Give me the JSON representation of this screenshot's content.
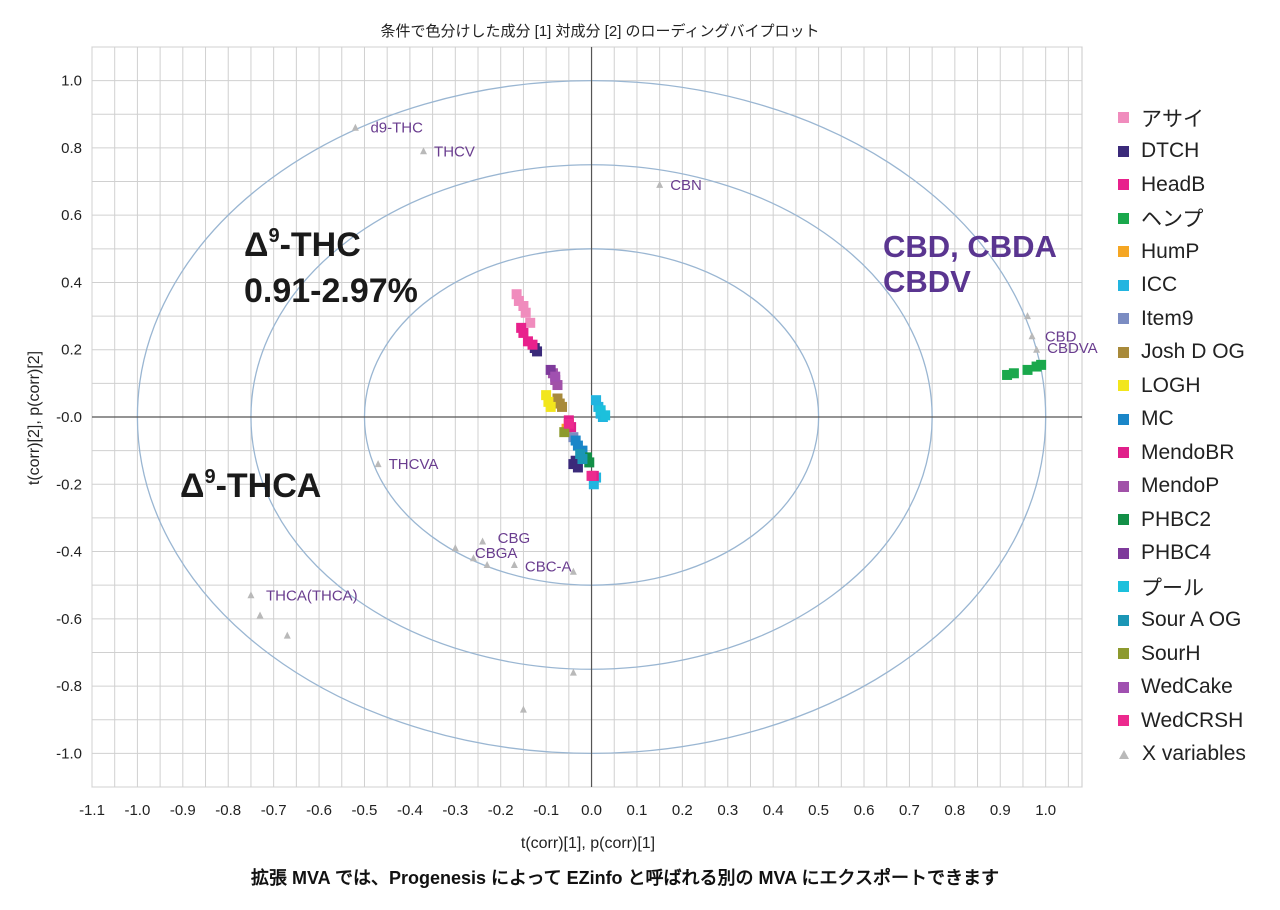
{
  "title": "条件で色分けした成分 [1] 対成分 [2] のローディングバイプロット",
  "caption": "拡張 MVA では、Progenesis によって EZinfo と呼ばれる別の MVA にエクスポートできます",
  "annotations": {
    "thc_line1": "Δ",
    "thc_sup": "9",
    "thc_line1_rest": "-THC",
    "thc_line2": "0.91-2.97%",
    "thca_pre": "Δ",
    "thca_sup": "9",
    "thca_rest": "-THCA",
    "cbd_line1": "CBD, CBDA",
    "cbd_line2": "CBDV"
  },
  "colors": {
    "grid": "#d0d0d0",
    "axis": "#555555",
    "ellipse": "#9ab6d2",
    "variable_marker": "#b9b9b9",
    "variable_label": "#6a3d8f",
    "annotation_dark": "#1a1a1a",
    "annotation_purple": "#5a3590"
  },
  "chart_data": {
    "type": "scatter",
    "title": "条件で色分けした成分 [1] 対成分 [2] のローディングバイプロット",
    "xlabel": "t(corr)[1], p(corr)[1]",
    "ylabel": "t(corr)[2], p(corr)[2]",
    "xlim": [
      -1.1,
      1.08
    ],
    "ylim": [
      -1.1,
      1.1
    ],
    "xticks": [
      "-1.1",
      "-1.0",
      "-0.9",
      "-0.8",
      "-0.7",
      "-0.6",
      "-0.5",
      "-0.4",
      "-0.3",
      "-0.2",
      "-0.1",
      "0.0",
      "0.1",
      "0.2",
      "0.3",
      "0.4",
      "0.5",
      "0.6",
      "0.7",
      "0.8",
      "0.9",
      "1.0"
    ],
    "yticks": [
      "1.0",
      "0.8",
      "0.6",
      "0.4",
      "0.2",
      "-0.0",
      "-0.2",
      "-0.4",
      "-0.6",
      "-0.8",
      "-1.0"
    ],
    "grid": true,
    "legend_position": "right",
    "ellipse_radii": [
      1.0,
      0.75,
      0.5
    ],
    "series": [
      {
        "name": "アサイ",
        "color": "#f08cbd",
        "points": [
          [
            -0.165,
            0.365
          ],
          [
            -0.16,
            0.345
          ],
          [
            -0.15,
            0.33
          ],
          [
            -0.145,
            0.31
          ],
          [
            -0.135,
            0.28
          ]
        ]
      },
      {
        "name": "DTCH",
        "color": "#3b2a7a",
        "points": [
          [
            -0.12,
            0.195
          ],
          [
            -0.125,
            0.205
          ],
          [
            -0.04,
            -0.14
          ],
          [
            -0.035,
            -0.13
          ],
          [
            -0.03,
            -0.15
          ]
        ]
      },
      {
        "name": "HeadB",
        "color": "#e8218c",
        "points": [
          [
            -0.155,
            0.265
          ],
          [
            -0.15,
            0.25
          ],
          [
            -0.14,
            0.225
          ],
          [
            -0.13,
            0.215
          ]
        ]
      },
      {
        "name": "ヘンプ",
        "color": "#1aa84c",
        "points": [
          [
            0.915,
            0.125
          ],
          [
            0.93,
            0.13
          ],
          [
            0.96,
            0.14
          ],
          [
            0.98,
            0.15
          ],
          [
            0.99,
            0.155
          ]
        ]
      },
      {
        "name": "HumP",
        "color": "#f5a623",
        "points": [
          [
            -0.05,
            -0.02
          ],
          [
            -0.055,
            -0.035
          ]
        ]
      },
      {
        "name": "ICC",
        "color": "#22b5e0",
        "points": [
          [
            0.01,
            0.05
          ],
          [
            0.015,
            0.03
          ],
          [
            0.02,
            0.01
          ],
          [
            0.025,
            0.0
          ],
          [
            0.01,
            -0.18
          ],
          [
            0.005,
            -0.2
          ]
        ]
      },
      {
        "name": "Item9",
        "color": "#7b8cc2",
        "points": [
          [
            -0.04,
            -0.06
          ]
        ]
      },
      {
        "name": "Josh D OG",
        "color": "#a88a3a",
        "points": [
          [
            -0.075,
            0.055
          ],
          [
            -0.07,
            0.04
          ],
          [
            -0.065,
            0.03
          ]
        ]
      },
      {
        "name": "LOGH",
        "color": "#f2e61c",
        "points": [
          [
            -0.1,
            0.065
          ],
          [
            -0.095,
            0.045
          ],
          [
            -0.09,
            0.03
          ]
        ]
      },
      {
        "name": "MC",
        "color": "#1a86c8",
        "points": [
          [
            -0.035,
            -0.07
          ],
          [
            -0.03,
            -0.085
          ],
          [
            -0.02,
            -0.1
          ]
        ]
      },
      {
        "name": "MendoBR",
        "color": "#e0208a",
        "points": [
          [
            -0.05,
            -0.01
          ],
          [
            -0.045,
            -0.03
          ],
          [
            0.005,
            -0.175
          ]
        ]
      },
      {
        "name": "MendoP",
        "color": "#a152a8",
        "points": [
          [
            -0.085,
            0.13
          ],
          [
            -0.08,
            0.11
          ],
          [
            -0.075,
            0.095
          ]
        ]
      },
      {
        "name": "PHBC2",
        "color": "#128f47",
        "points": [
          [
            -0.01,
            -0.12
          ],
          [
            -0.005,
            -0.135
          ]
        ]
      },
      {
        "name": "PHBC4",
        "color": "#7e3a9b",
        "points": [
          [
            -0.09,
            0.14
          ]
        ]
      },
      {
        "name": "プール",
        "color": "#1cc0dc",
        "points": [
          [
            0.02,
            0.02
          ],
          [
            0.03,
            0.005
          ]
        ]
      },
      {
        "name": "Sour A OG",
        "color": "#1b96b5",
        "points": [
          [
            -0.025,
            -0.11
          ],
          [
            -0.02,
            -0.125
          ]
        ]
      },
      {
        "name": "SourH",
        "color": "#8d9a2e",
        "points": [
          [
            -0.06,
            -0.045
          ]
        ]
      },
      {
        "name": "WedCake",
        "color": "#a050b0",
        "points": [
          [
            -0.08,
            0.12
          ]
        ]
      },
      {
        "name": "WedCRSH",
        "color": "#ec2a8e",
        "points": [
          [
            -0.05,
            -0.02
          ],
          [
            0.0,
            -0.175
          ]
        ]
      },
      {
        "name": "X variables",
        "color": "#b9b9b9",
        "marker": "triangle",
        "points": [
          [
            -0.52,
            0.86
          ],
          [
            -0.37,
            0.79
          ],
          [
            0.15,
            0.69
          ],
          [
            0.96,
            0.3
          ],
          [
            0.97,
            0.24
          ],
          [
            0.98,
            0.2
          ],
          [
            -0.47,
            -0.14
          ],
          [
            -0.24,
            -0.37
          ],
          [
            -0.3,
            -0.39
          ],
          [
            -0.26,
            -0.42
          ],
          [
            -0.23,
            -0.44
          ],
          [
            -0.17,
            -0.44
          ],
          [
            -0.04,
            -0.46
          ],
          [
            -0.75,
            -0.53
          ],
          [
            -0.73,
            -0.59
          ],
          [
            -0.67,
            -0.65
          ],
          [
            -0.04,
            -0.76
          ],
          [
            -0.15,
            -0.87
          ]
        ]
      }
    ],
    "variable_labels": [
      {
        "text": "d9-THC",
        "x": -0.5,
        "y": 0.86
      },
      {
        "text": "THCV",
        "x": -0.36,
        "y": 0.79
      },
      {
        "text": "CBN",
        "x": 0.16,
        "y": 0.69
      },
      {
        "text": "CBD",
        "x": 0.985,
        "y": 0.24
      },
      {
        "text": "CBDVA",
        "x": 0.99,
        "y": 0.205
      },
      {
        "text": "THCVA",
        "x": -0.46,
        "y": -0.14
      },
      {
        "text": "CBG",
        "x": -0.22,
        "y": -0.36
      },
      {
        "text": "CBGA",
        "x": -0.27,
        "y": -0.405
      },
      {
        "text": "CBC-A",
        "x": -0.16,
        "y": -0.445
      },
      {
        "text": "THCA(THCA)",
        "x": -0.73,
        "y": -0.53
      }
    ]
  }
}
